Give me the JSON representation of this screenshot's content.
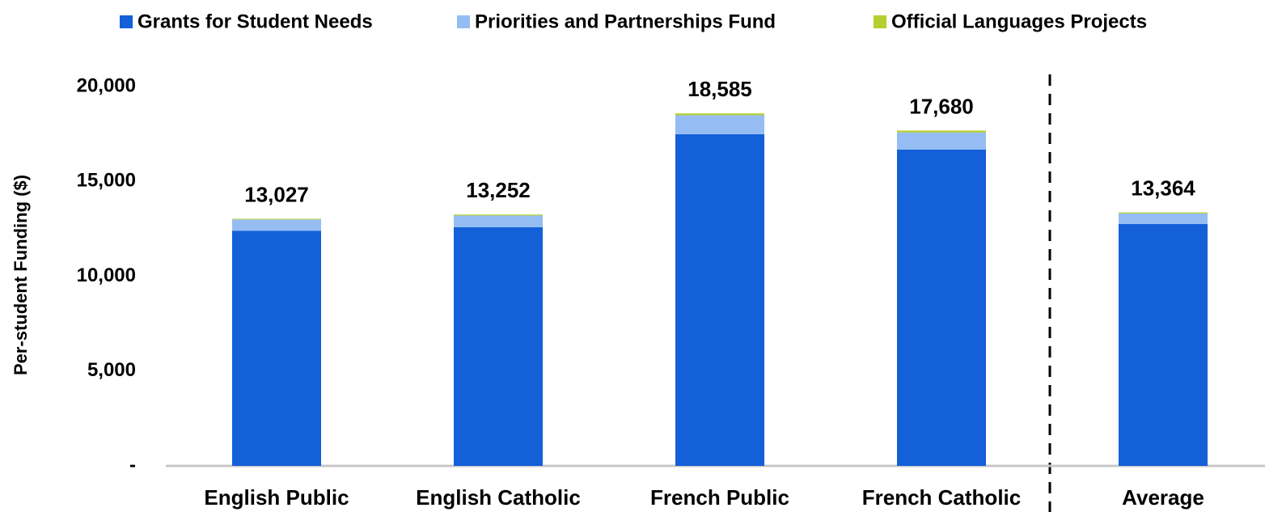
{
  "chart_data": {
    "type": "stacked_bar",
    "y_axis_label": "Per-student Funding ($)",
    "categories": [
      "English Public",
      "English Catholic",
      "French Public",
      "French Catholic",
      "Average"
    ],
    "series": [
      {
        "name": "Grants for Student Needs",
        "color": "#1360d8",
        "values": [
          12400,
          12580,
          17490,
          16680,
          12750
        ]
      },
      {
        "name": "Priorities and Partnerships Fund",
        "color": "#95bdf4",
        "values": [
          590,
          620,
          1000,
          900,
          560
        ]
      },
      {
        "name": "Official Languages Projects",
        "color": "#b5cf2d",
        "values": [
          37,
          52,
          95,
          100,
          54
        ]
      }
    ],
    "totals": [
      13027,
      13252,
      18585,
      17680,
      13364
    ],
    "total_labels": [
      "13,027",
      "13,252",
      "18,585",
      "17,680",
      "13,364"
    ],
    "ylim": [
      0,
      20000
    ],
    "yticks": [
      {
        "value": 0,
        "label": "-"
      },
      {
        "value": 5000,
        "label": "5,000"
      },
      {
        "value": 10000,
        "label": "10,000"
      },
      {
        "value": 15000,
        "label": "15,000"
      },
      {
        "value": 20000,
        "label": "20,000"
      }
    ],
    "legend": "top"
  }
}
